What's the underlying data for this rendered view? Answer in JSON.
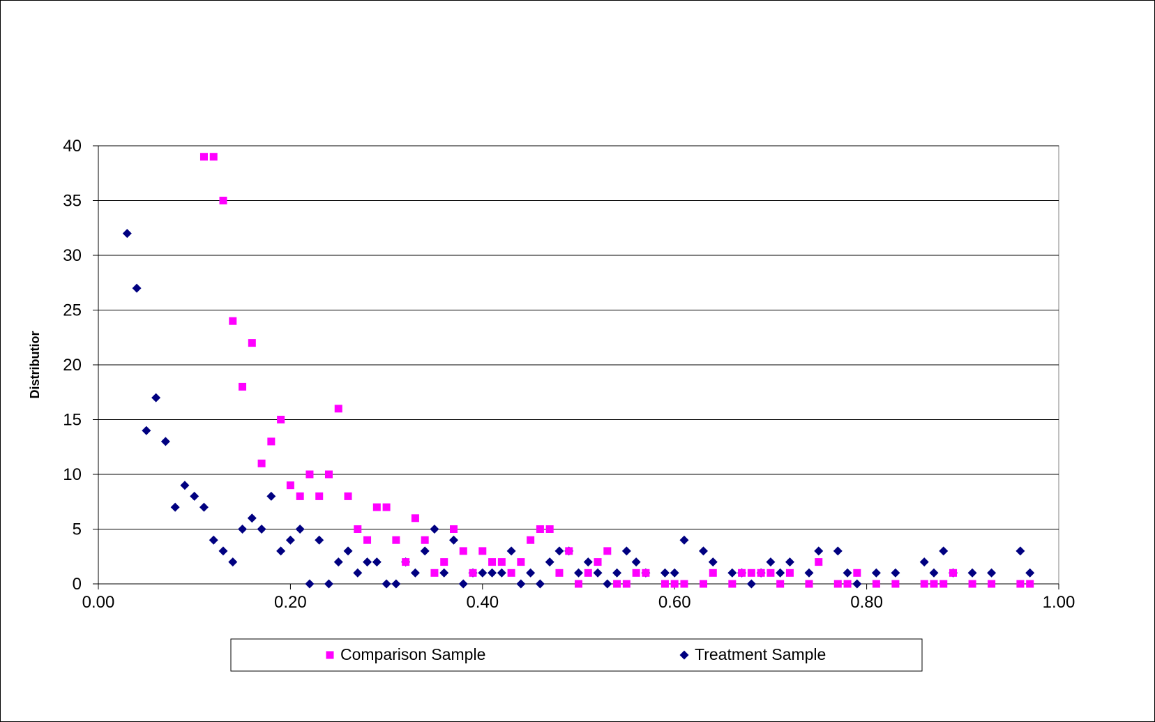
{
  "chart_data": {
    "type": "scatter",
    "title": "",
    "xlabel": "",
    "ylabel": "Distributior",
    "xlim": [
      0,
      1
    ],
    "ylim": [
      0,
      40
    ],
    "x_ticks": [
      "0.00",
      "0.20",
      "0.40",
      "0.60",
      "0.80",
      "1.00"
    ],
    "y_ticks": [
      "0",
      "5",
      "10",
      "15",
      "20",
      "25",
      "30",
      "35",
      "40"
    ],
    "grid": "horizontal",
    "legend_position": "bottom",
    "series": [
      {
        "name": "Comparison Sample",
        "marker": "square",
        "color": "#FF00FF",
        "points": [
          [
            0.11,
            39
          ],
          [
            0.12,
            39
          ],
          [
            0.13,
            35
          ],
          [
            0.14,
            24
          ],
          [
            0.15,
            18
          ],
          [
            0.16,
            22
          ],
          [
            0.17,
            11
          ],
          [
            0.18,
            13
          ],
          [
            0.19,
            15
          ],
          [
            0.2,
            9
          ],
          [
            0.21,
            8
          ],
          [
            0.22,
            10
          ],
          [
            0.23,
            8
          ],
          [
            0.24,
            10
          ],
          [
            0.25,
            16
          ],
          [
            0.26,
            8
          ],
          [
            0.27,
            5
          ],
          [
            0.28,
            4
          ],
          [
            0.29,
            7
          ],
          [
            0.3,
            7
          ],
          [
            0.31,
            4
          ],
          [
            0.32,
            2
          ],
          [
            0.33,
            6
          ],
          [
            0.34,
            4
          ],
          [
            0.35,
            1
          ],
          [
            0.36,
            2
          ],
          [
            0.37,
            5
          ],
          [
            0.38,
            3
          ],
          [
            0.39,
            1
          ],
          [
            0.4,
            3
          ],
          [
            0.41,
            2
          ],
          [
            0.42,
            2
          ],
          [
            0.43,
            1
          ],
          [
            0.44,
            2
          ],
          [
            0.45,
            4
          ],
          [
            0.46,
            5
          ],
          [
            0.47,
            5
          ],
          [
            0.48,
            1
          ],
          [
            0.49,
            3
          ],
          [
            0.5,
            0
          ],
          [
            0.51,
            1
          ],
          [
            0.52,
            2
          ],
          [
            0.53,
            3
          ],
          [
            0.54,
            0
          ],
          [
            0.55,
            0
          ],
          [
            0.56,
            1
          ],
          [
            0.57,
            1
          ],
          [
            0.59,
            0
          ],
          [
            0.6,
            0
          ],
          [
            0.61,
            0
          ],
          [
            0.63,
            0
          ],
          [
            0.64,
            1
          ],
          [
            0.66,
            0
          ],
          [
            0.67,
            1
          ],
          [
            0.68,
            1
          ],
          [
            0.69,
            1
          ],
          [
            0.7,
            1
          ],
          [
            0.71,
            0
          ],
          [
            0.72,
            1
          ],
          [
            0.74,
            0
          ],
          [
            0.75,
            2
          ],
          [
            0.77,
            0
          ],
          [
            0.78,
            0
          ],
          [
            0.79,
            1
          ],
          [
            0.81,
            0
          ],
          [
            0.83,
            0
          ],
          [
            0.86,
            0
          ],
          [
            0.87,
            0
          ],
          [
            0.88,
            0
          ],
          [
            0.89,
            1
          ],
          [
            0.91,
            0
          ],
          [
            0.93,
            0
          ],
          [
            0.96,
            0
          ],
          [
            0.97,
            0
          ]
        ]
      },
      {
        "name": "Treatment Sample",
        "marker": "diamond",
        "color": "#000080",
        "points": [
          [
            0.03,
            32
          ],
          [
            0.04,
            27
          ],
          [
            0.05,
            14
          ],
          [
            0.06,
            17
          ],
          [
            0.07,
            13
          ],
          [
            0.08,
            7
          ],
          [
            0.09,
            9
          ],
          [
            0.1,
            8
          ],
          [
            0.11,
            7
          ],
          [
            0.12,
            4
          ],
          [
            0.13,
            3
          ],
          [
            0.14,
            2
          ],
          [
            0.15,
            5
          ],
          [
            0.16,
            6
          ],
          [
            0.17,
            5
          ],
          [
            0.18,
            8
          ],
          [
            0.19,
            3
          ],
          [
            0.2,
            4
          ],
          [
            0.21,
            5
          ],
          [
            0.22,
            0
          ],
          [
            0.23,
            4
          ],
          [
            0.24,
            0
          ],
          [
            0.25,
            2
          ],
          [
            0.26,
            3
          ],
          [
            0.27,
            1
          ],
          [
            0.28,
            2
          ],
          [
            0.29,
            2
          ],
          [
            0.3,
            0
          ],
          [
            0.31,
            0
          ],
          [
            0.32,
            2
          ],
          [
            0.33,
            1
          ],
          [
            0.34,
            3
          ],
          [
            0.35,
            5
          ],
          [
            0.36,
            1
          ],
          [
            0.37,
            4
          ],
          [
            0.38,
            0
          ],
          [
            0.39,
            1
          ],
          [
            0.4,
            1
          ],
          [
            0.41,
            1
          ],
          [
            0.42,
            1
          ],
          [
            0.43,
            3
          ],
          [
            0.44,
            0
          ],
          [
            0.45,
            1
          ],
          [
            0.46,
            0
          ],
          [
            0.47,
            2
          ],
          [
            0.48,
            3
          ],
          [
            0.49,
            3
          ],
          [
            0.5,
            1
          ],
          [
            0.51,
            2
          ],
          [
            0.52,
            1
          ],
          [
            0.53,
            0
          ],
          [
            0.54,
            1
          ],
          [
            0.55,
            3
          ],
          [
            0.56,
            2
          ],
          [
            0.57,
            1
          ],
          [
            0.59,
            1
          ],
          [
            0.6,
            1
          ],
          [
            0.61,
            4
          ],
          [
            0.63,
            3
          ],
          [
            0.64,
            2
          ],
          [
            0.66,
            1
          ],
          [
            0.67,
            1
          ],
          [
            0.68,
            0
          ],
          [
            0.69,
            1
          ],
          [
            0.7,
            2
          ],
          [
            0.71,
            1
          ],
          [
            0.72,
            2
          ],
          [
            0.74,
            1
          ],
          [
            0.75,
            3
          ],
          [
            0.77,
            3
          ],
          [
            0.78,
            1
          ],
          [
            0.79,
            0
          ],
          [
            0.81,
            1
          ],
          [
            0.83,
            1
          ],
          [
            0.86,
            2
          ],
          [
            0.87,
            1
          ],
          [
            0.88,
            3
          ],
          [
            0.89,
            1
          ],
          [
            0.91,
            1
          ],
          [
            0.93,
            1
          ],
          [
            0.96,
            3
          ],
          [
            0.97,
            1
          ]
        ]
      }
    ]
  }
}
